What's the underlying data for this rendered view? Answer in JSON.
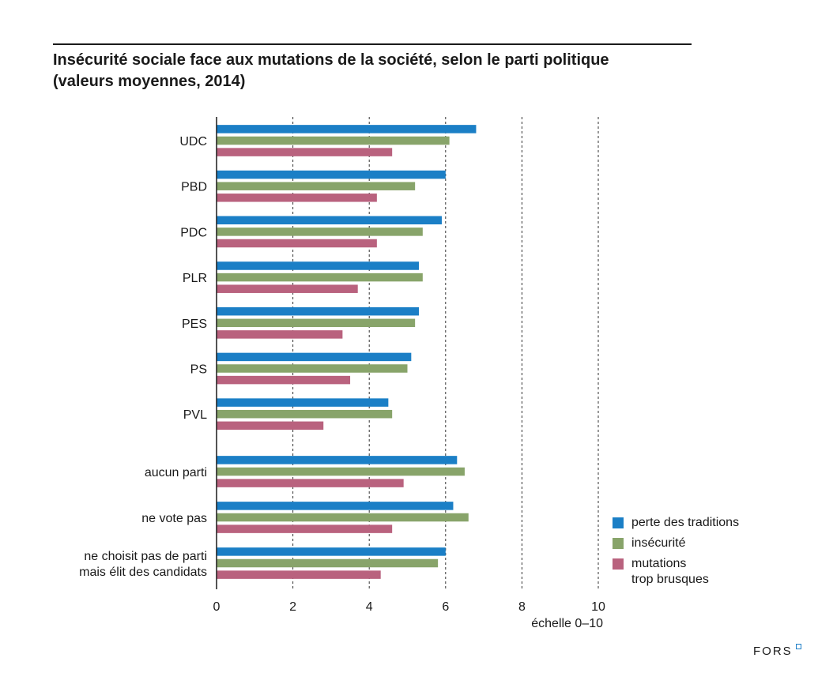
{
  "title": {
    "line1": "Insécurité sociale face aux mutations de la société, selon le parti politique",
    "line2": "(valeurs moyennes, 2014)"
  },
  "logo": "FORS",
  "colors": {
    "perte": "#1b7fc6",
    "insecurite": "#88a46a",
    "mutations": "#b9627e",
    "grid": "#333333",
    "logo_accent": "#1e7fc8"
  },
  "chart_data": {
    "type": "bar",
    "orientation": "horizontal",
    "title": "Insécurité sociale face aux mutations de la société, selon le parti politique (valeurs moyennes, 2014)",
    "xlabel": "échelle 0–10",
    "ylabel": "",
    "xlim": [
      0,
      10
    ],
    "xticks": [
      0,
      2,
      4,
      6,
      8,
      10
    ],
    "grid": "dashed vertical lines at 2, 4, 6, 8, 10",
    "legend_position": "bottom-right",
    "categories": [
      "UDC",
      "PBD",
      "PDC",
      "PLR",
      "PES",
      "PS",
      "PVL",
      "aucun parti",
      "ne vote pas",
      "ne choisit pas de parti\nmais élit des candidats"
    ],
    "series": [
      {
        "name": "perte des traditions",
        "color": "#1b7fc6",
        "values": [
          6.8,
          6.0,
          5.9,
          5.3,
          5.3,
          5.1,
          4.5,
          6.3,
          6.2,
          6.0
        ]
      },
      {
        "name": "insécurité",
        "color": "#88a46a",
        "values": [
          6.1,
          5.2,
          5.4,
          5.4,
          5.2,
          5.0,
          4.6,
          6.5,
          6.6,
          5.8
        ]
      },
      {
        "name": "mutations\ntrop brusques",
        "color": "#b9627e",
        "values": [
          4.6,
          4.2,
          4.2,
          3.7,
          3.3,
          3.5,
          2.8,
          4.9,
          4.6,
          4.3
        ]
      }
    ]
  }
}
